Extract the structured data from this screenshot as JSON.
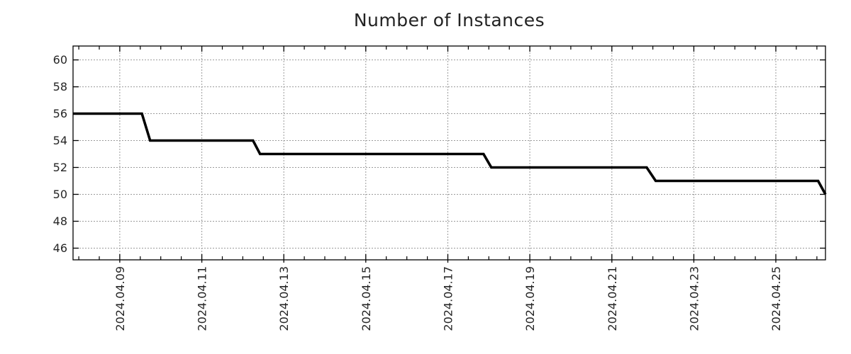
{
  "title": "Number of Instances",
  "chart_data": {
    "type": "line",
    "style": "step",
    "title": "Number of Instances",
    "xlabel": "",
    "ylabel": "",
    "grid": true,
    "legend": "none",
    "background": "#ffffff",
    "line_color": "#000000",
    "grid_color": "#9b9b9b",
    "frame_color": "#000000",
    "tick_label_color": "#262626",
    "y_ticks": [
      46,
      48,
      50,
      52,
      54,
      56,
      58,
      60
    ],
    "ylim": [
      45.13,
      61.03
    ],
    "x_tick_labels": [
      "2024.04.09",
      "2024.04.11",
      "2024.04.13",
      "2024.04.15",
      "2024.04.17",
      "2024.04.19",
      "2024.04.21",
      "2024.04.23",
      "2024.04.25"
    ],
    "x_tick_days": [
      9,
      11,
      13,
      15,
      17,
      19,
      21,
      23,
      25
    ],
    "x_minor_step_days": 0.5,
    "xlim_days": [
      7.86,
      26.21
    ],
    "series": [
      {
        "name": "Number of Instances",
        "color": "#000000",
        "points": [
          {
            "day": 7.86,
            "date": "2024.04.07",
            "value": 56
          },
          {
            "day": 9.54,
            "date": "2024.04.09",
            "value": 56
          },
          {
            "day": 9.74,
            "date": "2024.04.09",
            "value": 54
          },
          {
            "day": 12.25,
            "date": "2024.04.12",
            "value": 54
          },
          {
            "day": 12.42,
            "date": "2024.04.12",
            "value": 53
          },
          {
            "day": 17.87,
            "date": "2024.04.17",
            "value": 53
          },
          {
            "day": 18.06,
            "date": "2024.04.18",
            "value": 52
          },
          {
            "day": 21.85,
            "date": "2024.04.21",
            "value": 52
          },
          {
            "day": 22.07,
            "date": "2024.04.22",
            "value": 51
          },
          {
            "day": 26.03,
            "date": "2024.04.26",
            "value": 51
          },
          {
            "day": 26.21,
            "date": "2024.04.26",
            "value": 50
          }
        ]
      }
    ]
  }
}
